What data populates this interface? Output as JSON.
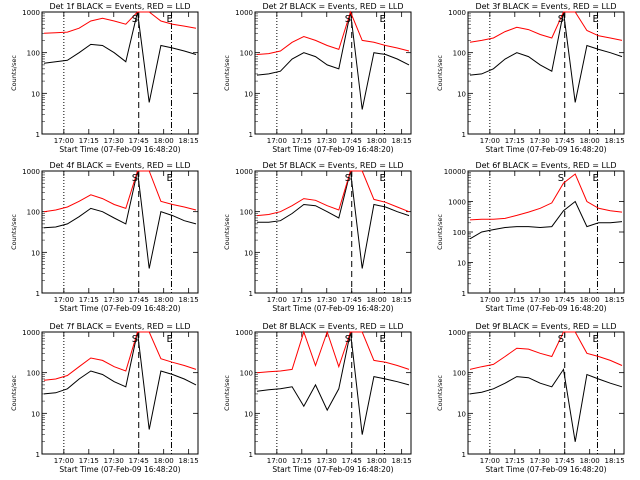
{
  "chart_data": [
    {
      "title": "Det 1f BLACK = Events, RED = LLD",
      "type": "line",
      "xlabel": "Start Time (07-Feb-09 16:48:20)",
      "ylabel": "Counts/sec",
      "yscale": "log",
      "ylim": [
        1,
        1000
      ],
      "yticks": [
        "1000",
        "100",
        "10",
        "1"
      ],
      "xticks": [
        "17:00",
        "17:15",
        "17:30",
        "17:45",
        "18:00",
        "18:15"
      ],
      "markers": [
        "S",
        "E"
      ],
      "series": [
        {
          "color": "#000000",
          "values": [
            55,
            60,
            65,
            100,
            160,
            150,
            100,
            60,
            1000,
            6,
            150,
            130,
            110,
            90
          ]
        },
        {
          "color": "#ff0000",
          "values": [
            300,
            310,
            320,
            400,
            600,
            700,
            600,
            500,
            1000,
            1000,
            600,
            500,
            450,
            400
          ]
        }
      ]
    },
    {
      "title": "Det 2f BLACK = Events, RED = LLD",
      "type": "line",
      "xlabel": "Start Time (07-Feb-09 16:48:20)",
      "ylabel": "Counts/sec",
      "yscale": "log",
      "ylim": [
        1,
        1000
      ],
      "yticks": [
        "1000",
        "100",
        "10",
        "1"
      ],
      "xticks": [
        "17:00",
        "17:15",
        "17:30",
        "17:45",
        "18:00",
        "18:15"
      ],
      "markers": [
        "S",
        "E"
      ],
      "series": [
        {
          "color": "#000000",
          "values": [
            28,
            30,
            35,
            70,
            100,
            80,
            50,
            40,
            1000,
            4,
            100,
            90,
            70,
            50
          ]
        },
        {
          "color": "#ff0000",
          "values": [
            90,
            95,
            110,
            180,
            250,
            200,
            150,
            120,
            1000,
            200,
            180,
            150,
            130,
            110
          ]
        }
      ]
    },
    {
      "title": "Det 3f BLACK = Events, RED = LLD",
      "type": "line",
      "xlabel": "Start Time (07-Feb-09 16:48:20)",
      "ylabel": "Counts/sec",
      "yscale": "log",
      "ylim": [
        1,
        1000
      ],
      "yticks": [
        "1000",
        "100",
        "10",
        "1"
      ],
      "xticks": [
        "17:00",
        "17:15",
        "17:30",
        "17:45",
        "18:00",
        "18:15"
      ],
      "markers": [
        "S",
        "E"
      ],
      "series": [
        {
          "color": "#000000",
          "values": [
            28,
            30,
            40,
            70,
            100,
            80,
            50,
            35,
            1000,
            6,
            150,
            120,
            100,
            80
          ]
        },
        {
          "color": "#ff0000",
          "values": [
            180,
            200,
            230,
            330,
            420,
            370,
            280,
            230,
            1000,
            1000,
            350,
            260,
            230,
            200
          ]
        }
      ]
    },
    {
      "title": "Det 4f BLACK = Events, RED = LLD",
      "type": "line",
      "xlabel": "Start Time (07-Feb-09 16:48:20)",
      "ylabel": "Counts/sec",
      "yscale": "log",
      "ylim": [
        1,
        1000
      ],
      "yticks": [
        "1000",
        "100",
        "10",
        "1"
      ],
      "xticks": [
        "17:00",
        "17:15",
        "17:30",
        "17:45",
        "18:00",
        "18:15"
      ],
      "markers": [
        "S",
        "E"
      ],
      "series": [
        {
          "color": "#000000",
          "values": [
            40,
            42,
            50,
            75,
            120,
            100,
            70,
            50,
            1000,
            4,
            100,
            80,
            60,
            50
          ]
        },
        {
          "color": "#ff0000",
          "values": [
            100,
            110,
            130,
            180,
            260,
            210,
            150,
            120,
            1000,
            1000,
            180,
            150,
            130,
            110
          ]
        }
      ]
    },
    {
      "title": "Det 5f BLACK = Events, RED = LLD",
      "type": "line",
      "xlabel": "Start Time (07-Feb-09 16:48:20)",
      "ylabel": "Counts/sec",
      "yscale": "log",
      "ylim": [
        1,
        1000
      ],
      "yticks": [
        "1000",
        "100",
        "10",
        "1"
      ],
      "xticks": [
        "17:00",
        "17:15",
        "17:30",
        "17:45",
        "18:00",
        "18:15"
      ],
      "markers": [
        "S",
        "E"
      ],
      "series": [
        {
          "color": "#000000",
          "values": [
            55,
            55,
            60,
            90,
            150,
            140,
            100,
            70,
            1000,
            4,
            150,
            130,
            100,
            80
          ]
        },
        {
          "color": "#ff0000",
          "values": [
            80,
            85,
            100,
            140,
            210,
            190,
            140,
            110,
            1000,
            1000,
            200,
            170,
            130,
            100
          ]
        }
      ]
    },
    {
      "title": "Det 6f BLACK = Events, RED = LLD",
      "type": "line",
      "xlabel": "Start Time (07-Feb-09 16:48:20)",
      "ylabel": "Counts/sec",
      "yscale": "log",
      "ylim": [
        1,
        10000
      ],
      "yticks": [
        "10000",
        "1000",
        "100",
        "10",
        "1"
      ],
      "xticks": [
        "17:00",
        "17:15",
        "17:30",
        "17:45",
        "18:00",
        "18:15"
      ],
      "markers": [
        "S",
        "E"
      ],
      "series": [
        {
          "color": "#000000",
          "values": [
            60,
            100,
            120,
            140,
            150,
            150,
            140,
            150,
            500,
            1000,
            150,
            200,
            200,
            220
          ]
        },
        {
          "color": "#ff0000",
          "values": [
            250,
            260,
            260,
            280,
            350,
            450,
            600,
            900,
            4000,
            8000,
            1000,
            600,
            500,
            450
          ]
        }
      ]
    },
    {
      "title": "Det 7f BLACK = Events, RED = LLD",
      "type": "line",
      "xlabel": "Start Time (07-Feb-09 16:48:20)",
      "ylabel": "Counts/sec",
      "yscale": "log",
      "ylim": [
        1,
        1000
      ],
      "yticks": [
        "1000",
        "100",
        "10",
        "1"
      ],
      "xticks": [
        "17:00",
        "17:15",
        "17:30",
        "17:45",
        "18:00",
        "18:15"
      ],
      "markers": [
        "S",
        "E"
      ],
      "series": [
        {
          "color": "#000000",
          "values": [
            30,
            32,
            40,
            70,
            110,
            90,
            60,
            45,
            1000,
            4,
            110,
            90,
            70,
            50
          ]
        },
        {
          "color": "#ff0000",
          "values": [
            65,
            70,
            85,
            140,
            230,
            200,
            140,
            110,
            1000,
            1000,
            220,
            180,
            150,
            120
          ]
        }
      ]
    },
    {
      "title": "Det 8f BLACK = Events, RED = LLD",
      "type": "line",
      "xlabel": "Start Time (07-Feb-09 16:48:20)",
      "ylabel": "Counts/sec",
      "yscale": "log",
      "ylim": [
        1,
        1000
      ],
      "yticks": [
        "1000",
        "100",
        "10",
        "1"
      ],
      "xticks": [
        "17:00",
        "17:15",
        "17:30",
        "17:45",
        "18:00",
        "18:15"
      ],
      "markers": [
        "S",
        "E"
      ],
      "series": [
        {
          "color": "#000000",
          "values": [
            35,
            38,
            40,
            45,
            15,
            50,
            12,
            40,
            1000,
            3,
            80,
            70,
            60,
            50
          ]
        },
        {
          "color": "#ff0000",
          "values": [
            100,
            105,
            110,
            120,
            1000,
            150,
            1000,
            140,
            1000,
            1000,
            200,
            180,
            150,
            120
          ]
        }
      ]
    },
    {
      "title": "Det 9f BLACK = Events, RED = LLD",
      "type": "line",
      "xlabel": "Start Time (07-Feb-09 16:48:20)",
      "ylabel": "Counts/sec",
      "yscale": "log",
      "ylim": [
        1,
        1000
      ],
      "yticks": [
        "1000",
        "100",
        "10",
        "1"
      ],
      "xticks": [
        "17:00",
        "17:15",
        "17:30",
        "17:45",
        "18:00",
        "18:15"
      ],
      "markers": [
        "S",
        "E"
      ],
      "series": [
        {
          "color": "#000000",
          "values": [
            30,
            33,
            40,
            55,
            80,
            75,
            55,
            45,
            120,
            2,
            90,
            70,
            55,
            45
          ]
        },
        {
          "color": "#ff0000",
          "values": [
            120,
            140,
            160,
            250,
            400,
            380,
            300,
            250,
            1000,
            1000,
            300,
            250,
            200,
            150
          ]
        }
      ]
    }
  ]
}
